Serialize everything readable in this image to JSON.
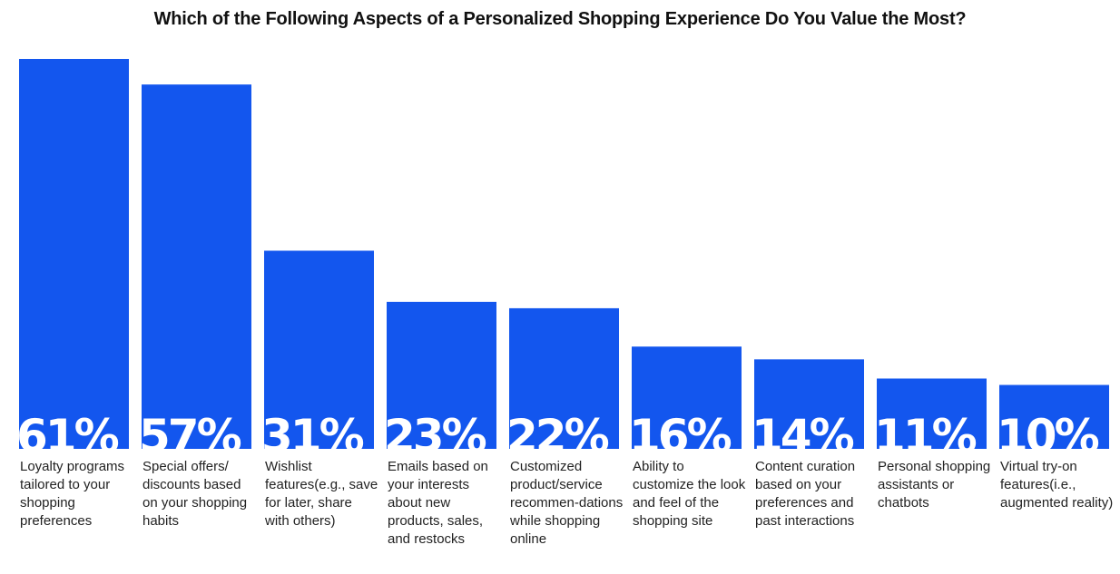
{
  "chart_data": {
    "type": "bar",
    "title": "Which of the Following Aspects of a Personalized Shopping Experience Do You Value the Most?",
    "xlabel": "",
    "ylabel": "",
    "ylim": [
      0,
      61
    ],
    "grid": false,
    "legend": "none",
    "bar_color": "#1356ee",
    "value_label_color": "#ffffff",
    "categories": [
      "Loyalty programs tailored to your shopping preferences",
      "Special offers/ discounts based on your shopping habits",
      "Wishlist features(e.g., save for later, share with others)",
      "Emails based on your interests about new products, sales, and restocks",
      "Customized product/service recommen-dations while shopping online",
      "Ability to customize the look and feel of the shopping site",
      "Content curation based on your preferences and past interactions",
      "Personal shopping assistants or chatbots",
      "Virtual try-on features(i.e., augmented reality)"
    ],
    "values": [
      61,
      57,
      31,
      23,
      22,
      16,
      14,
      11,
      10
    ],
    "value_labels": [
      "61%",
      "57%",
      "31%",
      "23%",
      "22%",
      "16%",
      "14%",
      "11%",
      "10%"
    ]
  }
}
